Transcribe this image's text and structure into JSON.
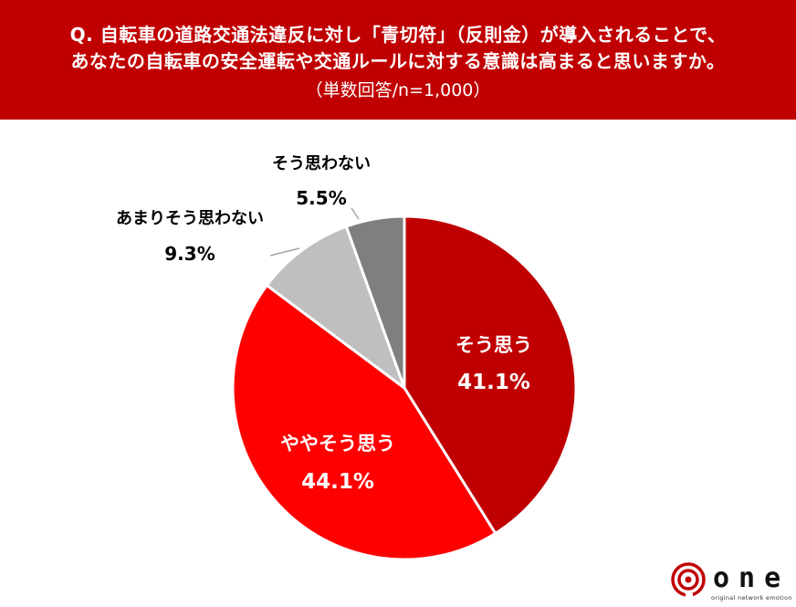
{
  "header": {
    "question_line1": "Q. 自転車の道路交通法違反に対し「青切符」（反則金）が導入されることで、",
    "question_line2": "あなたの自転車の安全運転や交通ルールに対する意識は高まると思いますか。",
    "sample_note": "（単数回答/n=1,000）",
    "background_color": "#c00000"
  },
  "chart_data": {
    "type": "pie",
    "unit": "%",
    "start_angle_deg": 0,
    "direction": "clockwise",
    "slices": [
      {
        "label": "そう思う",
        "value": 41.1,
        "display": "41.1%",
        "color": "#c00000",
        "label_position": "inside"
      },
      {
        "label": "ややそう思う",
        "value": 44.1,
        "display": "44.1%",
        "color": "#ff0000",
        "label_position": "inside"
      },
      {
        "label": "あまりそう思わない",
        "value": 9.3,
        "display": "9.3%",
        "color": "#bfbfbf",
        "label_position": "outside"
      },
      {
        "label": "そう思わない",
        "value": 5.5,
        "display": "5.5%",
        "color": "#7f7f7f",
        "label_position": "outside"
      }
    ]
  },
  "logo": {
    "word": "one",
    "tagline": "original network emotion",
    "icon": "spiral-logo-icon",
    "color": "#c00000"
  }
}
